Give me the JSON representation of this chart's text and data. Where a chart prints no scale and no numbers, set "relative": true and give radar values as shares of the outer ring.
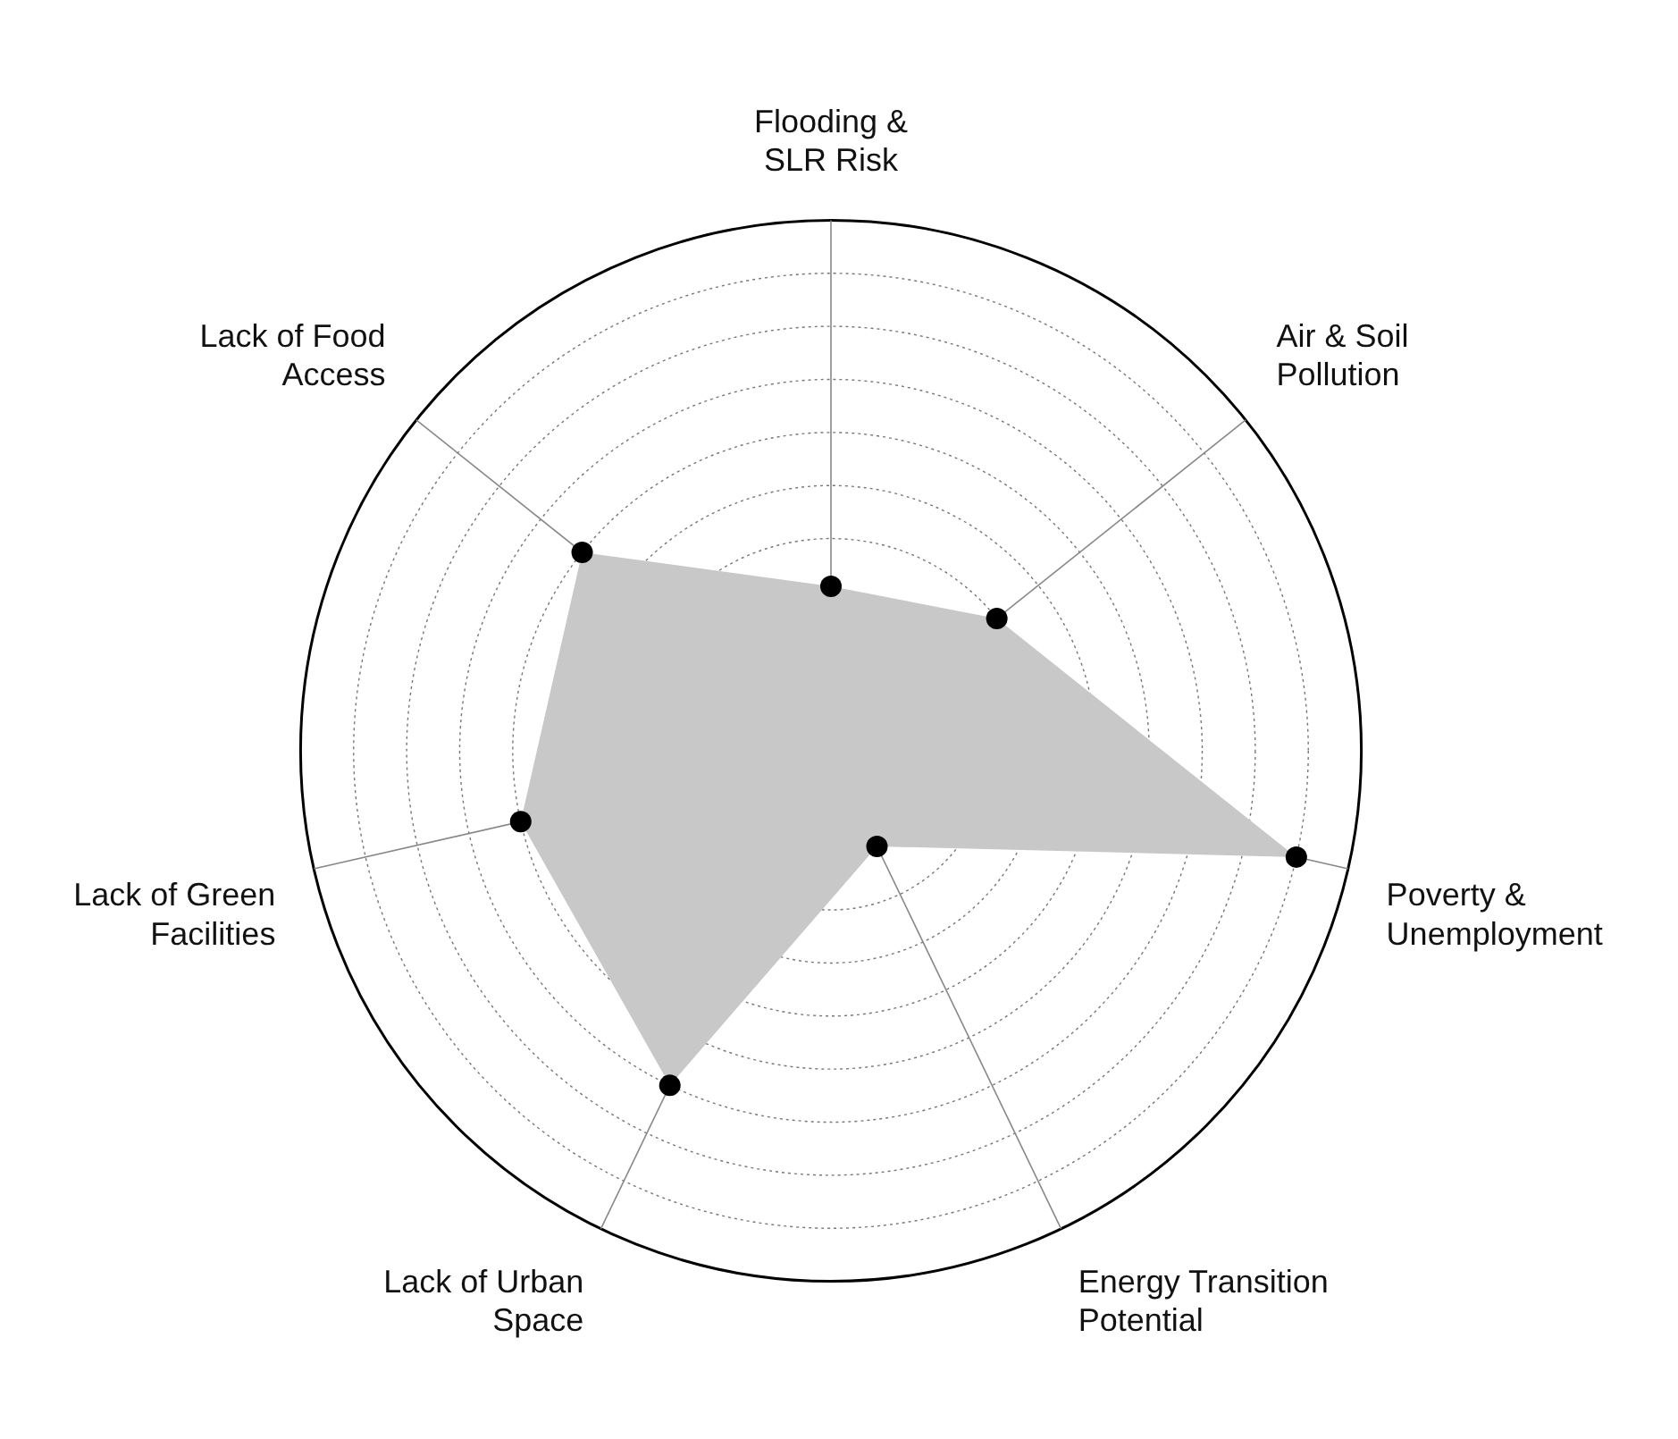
{
  "chart_data": {
    "type": "radar",
    "categories": [
      "Flooding &\nSLR Risk",
      "Air & Soil\nPollution",
      "Poverty &\nUnemployment",
      "Energy Transition\nPotential",
      "Lack of Urban\nSpace",
      "Lack of Green\nFacilities",
      "Lack of Food\nAccess"
    ],
    "series": [
      {
        "color": "#c8c8c8",
        "values": [
          0.31,
          0.4,
          0.9,
          0.2,
          0.7,
          0.6,
          0.6
        ]
      }
    ],
    "relative": true,
    "grid": true,
    "marker": "circle"
  }
}
